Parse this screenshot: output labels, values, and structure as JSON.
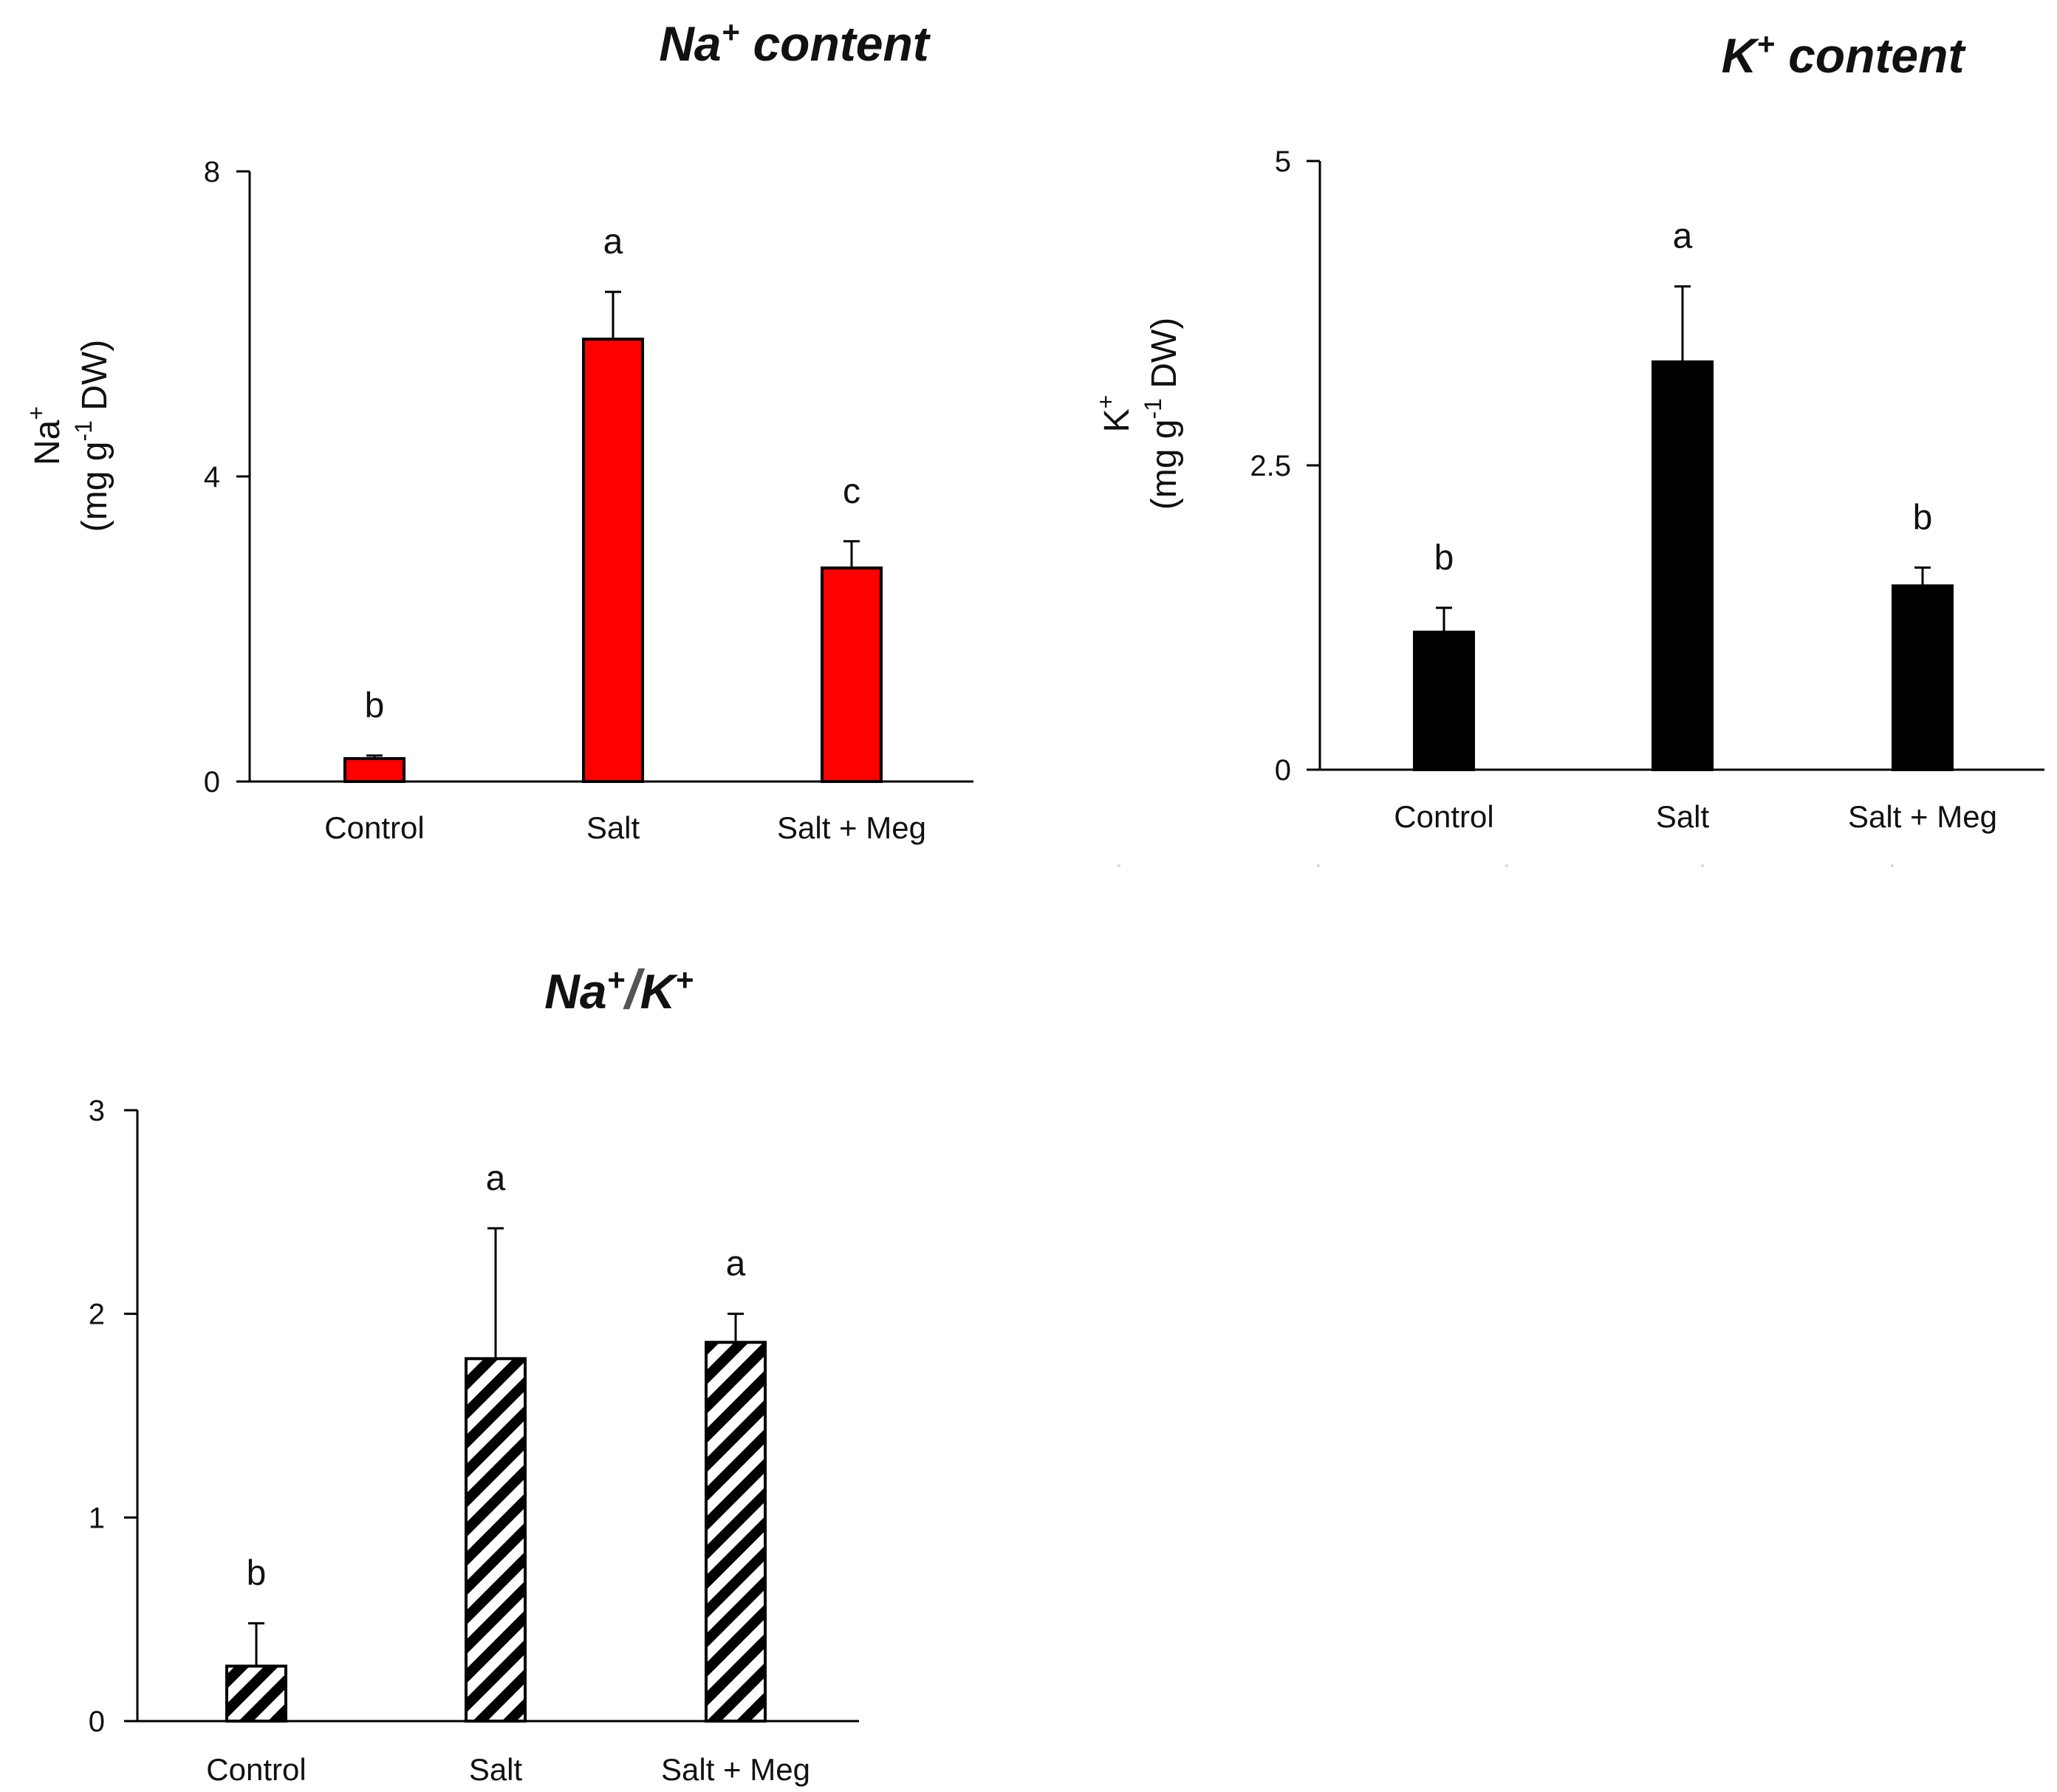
{
  "figure": {
    "panel_titles": {
      "na": {
        "main": "Na",
        "sup": "+",
        "rest": " content"
      },
      "k": {
        "main": "K",
        "sup": "+",
        "rest": " content"
      },
      "ratio": {
        "a": "Na",
        "a_sup": "+",
        "slash": "/",
        "b": "K",
        "b_sup": "+"
      }
    }
  },
  "chart_data": [
    {
      "id": "na",
      "type": "bar",
      "title": "Na+ content",
      "ylabel_ion": "Na",
      "ylabel_ion_sup": "+",
      "ylabel_unit_a": "(mg g",
      "ylabel_unit_sup": "-1",
      "ylabel_unit_b": " DW)",
      "categories": [
        "Control",
        "Salt",
        "Salt + Meg"
      ],
      "values": [
        0.3,
        5.8,
        2.8
      ],
      "errors": [
        0.04,
        0.62,
        0.35
      ],
      "letters": [
        "b",
        "a",
        "c"
      ],
      "yticks": [
        0,
        4,
        8
      ],
      "ytick_labels": [
        "0",
        "4",
        "8"
      ],
      "ylim": [
        0,
        8
      ],
      "fill": "#ff0000",
      "pattern": "solid"
    },
    {
      "id": "k",
      "type": "bar",
      "title": "K+ content",
      "ylabel_ion": "K",
      "ylabel_ion_sup": "+",
      "ylabel_unit_a": "(mg g",
      "ylabel_unit_sup": "-1",
      "ylabel_unit_b": " DW)",
      "categories": [
        "Control",
        "Salt",
        "Salt + Meg"
      ],
      "values": [
        1.13,
        3.35,
        1.51
      ],
      "errors": [
        0.2,
        0.62,
        0.15
      ],
      "letters": [
        "b",
        "a",
        "b"
      ],
      "yticks": [
        0,
        2.5,
        5
      ],
      "ytick_labels": [
        "0",
        "2.5",
        "5"
      ],
      "ylim": [
        0,
        5
      ],
      "fill": "#000000",
      "pattern": "solid"
    },
    {
      "id": "ratio",
      "type": "bar",
      "title": "Na+/K+",
      "categories": [
        "Control",
        "Salt",
        "Salt + Meg"
      ],
      "values": [
        0.27,
        1.78,
        1.86
      ],
      "errors": [
        0.21,
        0.64,
        0.14
      ],
      "letters": [
        "b",
        "a",
        "a"
      ],
      "yticks": [
        0,
        1,
        2,
        3
      ],
      "ytick_labels": [
        "0",
        "1",
        "2",
        "3"
      ],
      "ylim": [
        0,
        3
      ],
      "fill": "#ffffff",
      "pattern": "hatch"
    }
  ]
}
